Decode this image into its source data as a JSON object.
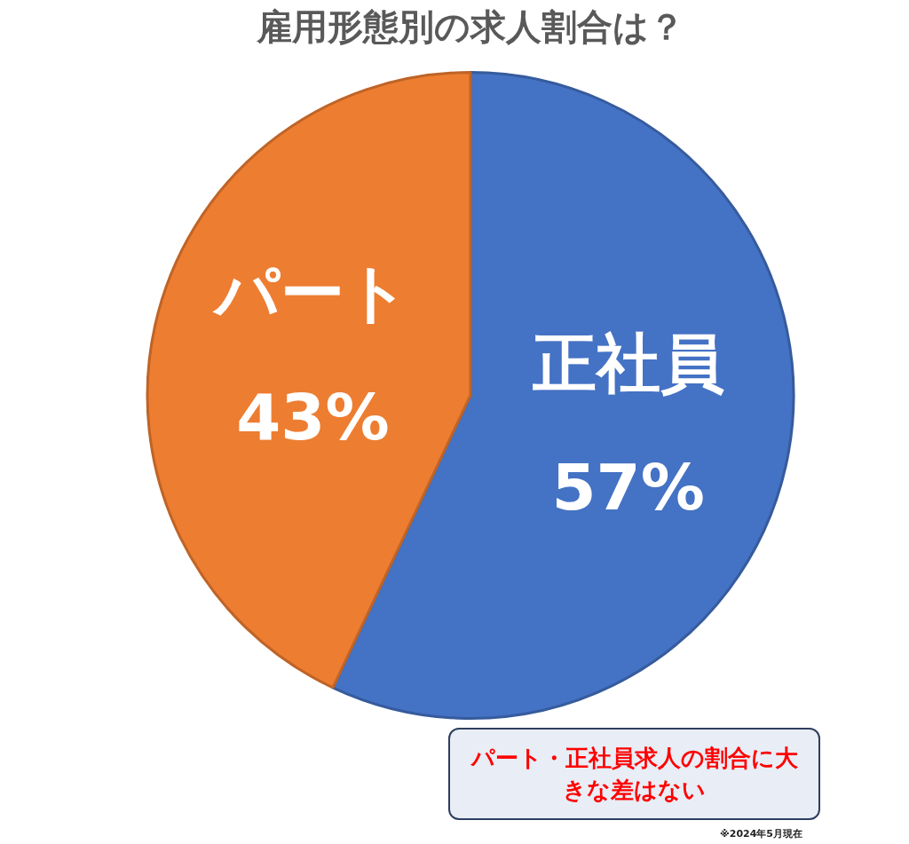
{
  "chart_data": {
    "type": "pie",
    "title": "雇用形態別の求人割合は？",
    "categories": [
      "正社員",
      "パート"
    ],
    "values": [
      57,
      43
    ],
    "colors": [
      "#4472c4",
      "#ed7d31"
    ],
    "value_labels": [
      "57%",
      "43%"
    ],
    "legend": false,
    "annotations": [
      "パート・正社員求人の割合に大きな差はない",
      "※2024年5月現在"
    ]
  }
}
